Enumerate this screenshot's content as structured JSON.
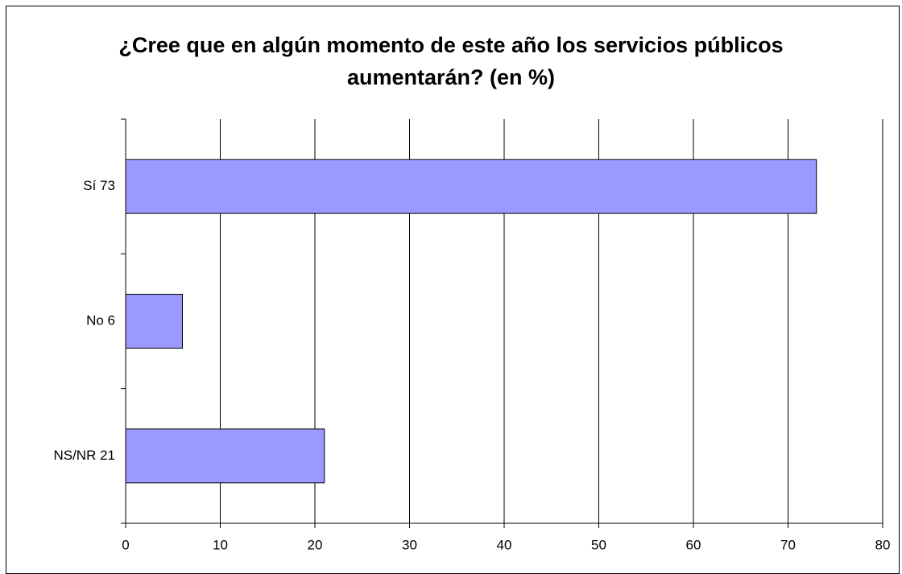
{
  "chart_data": {
    "type": "bar",
    "orientation": "horizontal",
    "title": "¿Cree que en algún momento de este año los servicios públicos aumentarán? (en %)",
    "categories": [
      "Sí 73",
      "No 6",
      "NS/NR 21"
    ],
    "values": [
      73,
      6,
      21
    ],
    "color": "#9999ff",
    "xlim": [
      0,
      80
    ],
    "xticks": [
      0,
      10,
      20,
      30,
      40,
      50,
      60,
      70,
      80
    ],
    "grid": true
  }
}
